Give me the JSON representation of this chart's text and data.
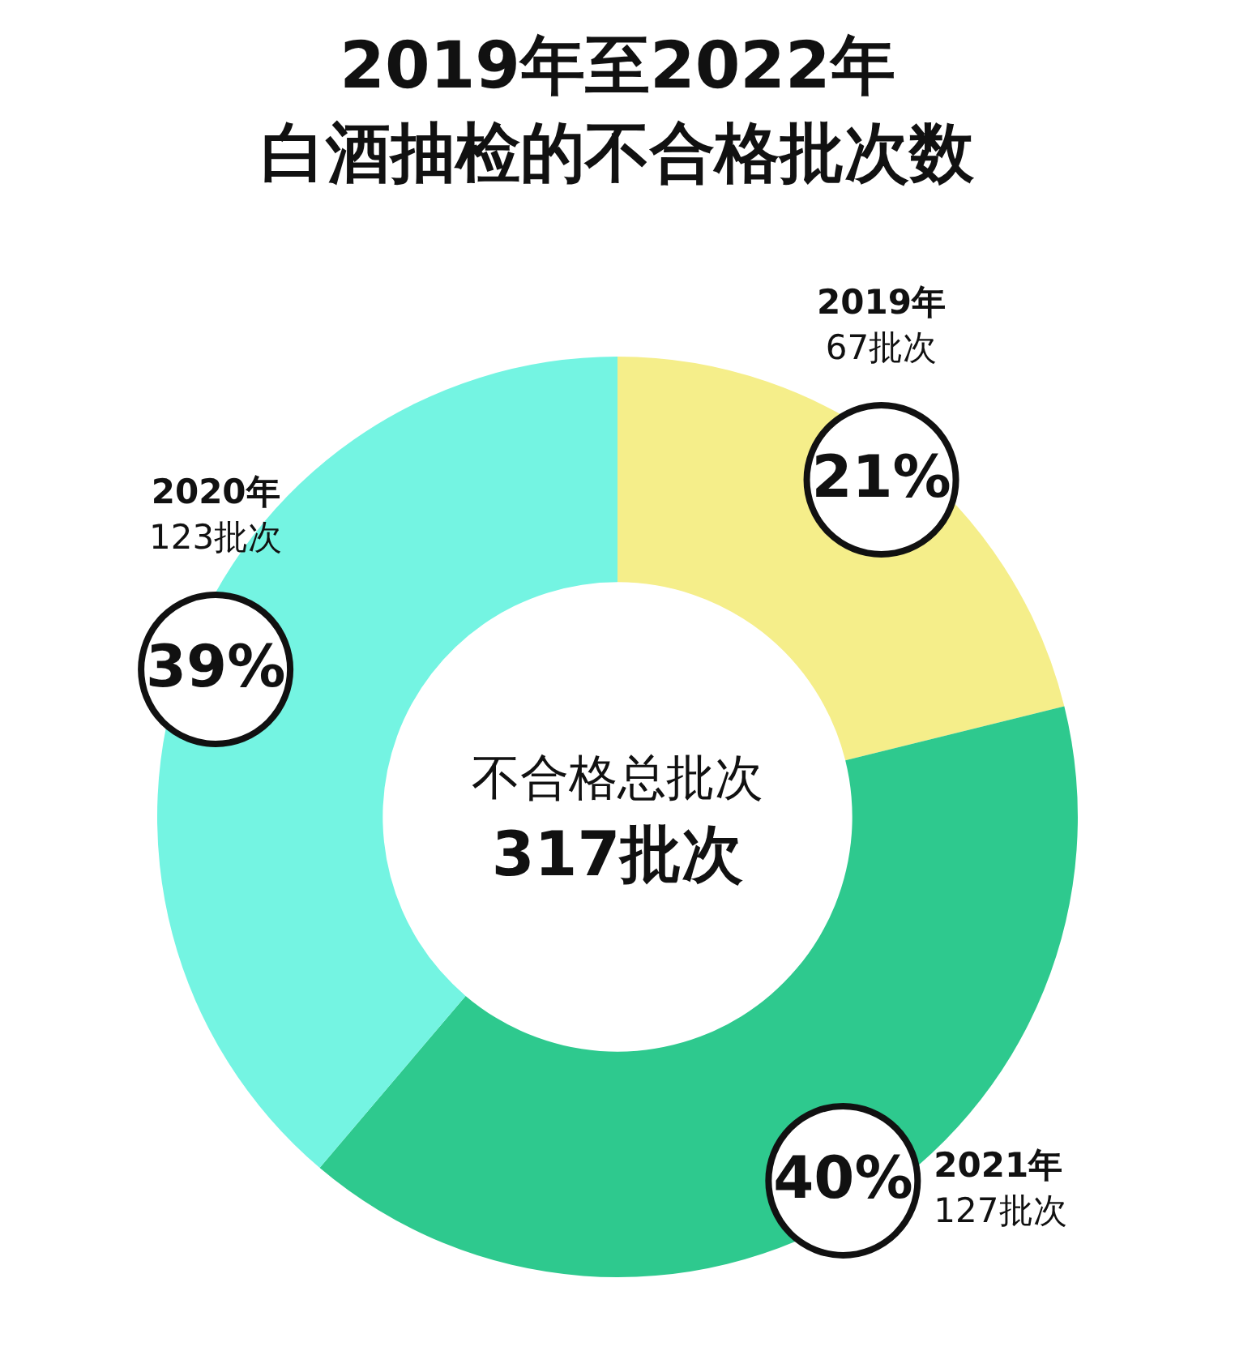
{
  "chart_data": {
    "type": "donut",
    "title": "2019年至2022年",
    "subtitle": "白酒抽检的不合格批次数",
    "categories": [
      "2019年",
      "2021年",
      "2020年"
    ],
    "values": [
      67,
      127,
      123
    ],
    "colors": [
      "#f5ee8a",
      "#2ec98e",
      "#74f4e2"
    ],
    "value_labels": [
      "67批次",
      "127批次",
      "123批次"
    ],
    "annotations": [
      {
        "text": "21%",
        "x": "2019年"
      },
      {
        "text": "40%",
        "x": "2021年"
      },
      {
        "text": "39%",
        "x": "2020年"
      },
      "不合格总批次",
      "317批次"
    ],
    "legend": false
  }
}
